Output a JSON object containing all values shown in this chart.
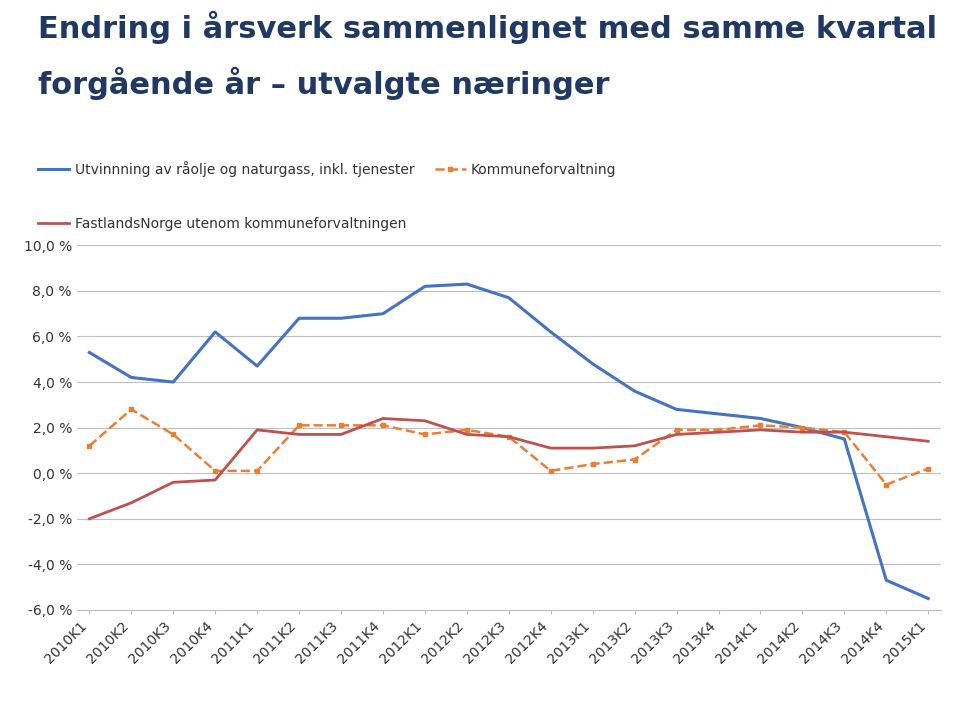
{
  "title_line1": "Endring i årsverk sammenlignet med samme kvartal",
  "title_line2": "forgående år – utvalgte næringer",
  "categories": [
    "2010K1",
    "2010K2",
    "2010K3",
    "2010K4",
    "2011K1",
    "2011K2",
    "2011K3",
    "2011K4",
    "2012K1",
    "2012K2",
    "2012K3",
    "2012K4",
    "2013K1",
    "2013K2",
    "2013K3",
    "2013K4",
    "2014K1",
    "2014K2",
    "2014K3",
    "2014K4",
    "2015K1"
  ],
  "oil_label": "Utvinnning av råolje og naturgass, inkl. tjenester",
  "oil_color": "#4472C4",
  "oil_values": [
    5.3,
    4.2,
    4.0,
    6.2,
    4.7,
    6.8,
    6.8,
    7.0,
    8.2,
    8.3,
    7.7,
    6.2,
    4.8,
    3.6,
    2.8,
    2.6,
    2.4,
    2.0,
    1.5,
    -4.7,
    -5.5
  ],
  "komm_label": "Kommuneforvaltning",
  "komm_color": "#ED7D31",
  "komm_values": [
    1.2,
    2.8,
    1.7,
    0.1,
    0.1,
    2.1,
    2.1,
    2.1,
    1.7,
    1.9,
    1.6,
    0.1,
    0.4,
    0.6,
    1.9,
    1.9,
    2.1,
    2.0,
    1.8,
    -0.5,
    0.2
  ],
  "fast_label": "FastlandsNorge utenom kommuneforvaltningen",
  "fast_color": "#C0504D",
  "fast_values": [
    -2.0,
    -1.3,
    -0.4,
    -0.3,
    1.9,
    1.7,
    1.7,
    2.4,
    2.3,
    1.7,
    1.6,
    1.1,
    1.1,
    1.2,
    1.7,
    1.8,
    1.9,
    1.8,
    1.8,
    1.6,
    1.4
  ],
  "ylim": [
    -6.0,
    10.0
  ],
  "yticks": [
    -6.0,
    -4.0,
    -2.0,
    0.0,
    2.0,
    4.0,
    6.0,
    8.0,
    10.0
  ],
  "background_color": "#FFFFFF",
  "grid_color": "#BFBFBF",
  "title_color": "#1F3864",
  "title_fontsize": 22,
  "legend_fontsize": 10,
  "tick_fontsize": 10
}
